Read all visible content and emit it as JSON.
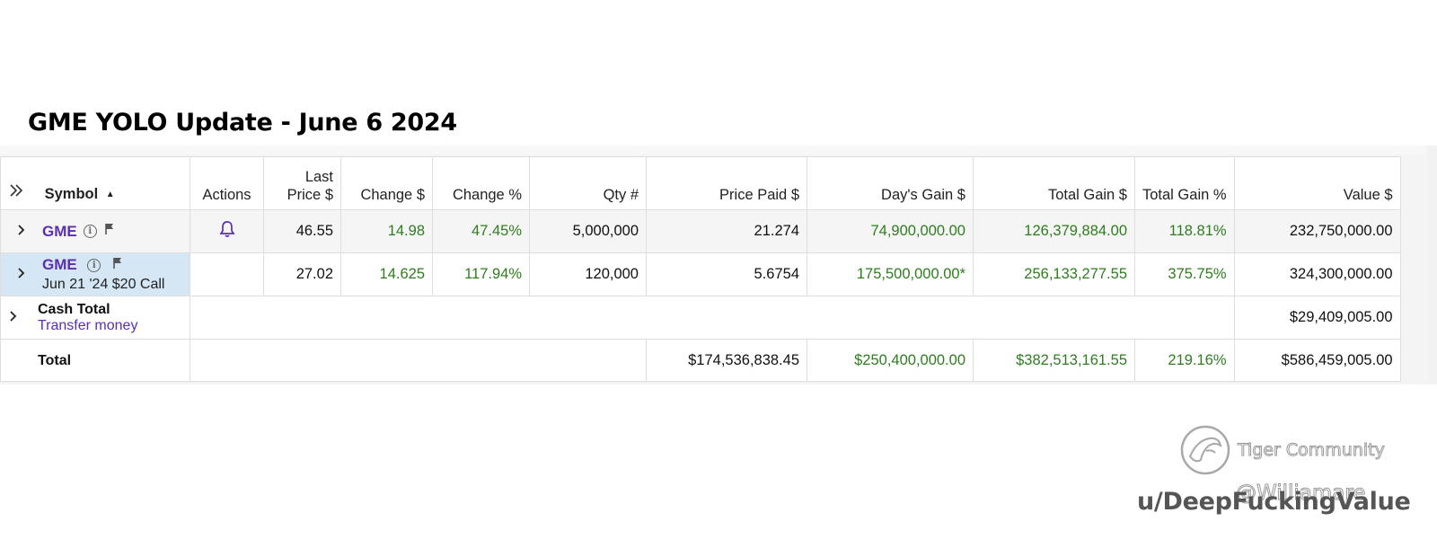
{
  "title": "GME YOLO Update - June 6 2024",
  "table": {
    "headers": {
      "symbol": "Symbol",
      "actions": "Actions",
      "last_price_line1": "Last",
      "last_price_line2": "Price $",
      "change": "Change $",
      "change_pct": "Change %",
      "qty": "Qty #",
      "price_paid": "Price Paid $",
      "days_gain": "Day's Gain $",
      "total_gain": "Total Gain $",
      "total_gain_pct": "Total Gain %",
      "value": "Value $"
    },
    "rows": [
      {
        "symbol": "GME",
        "last_price": "46.55",
        "change": "14.98",
        "change_pct": "47.45%",
        "qty": "5,000,000",
        "price_paid": "21.274",
        "days_gain": "74,900,000.00",
        "total_gain": "126,379,884.00",
        "total_gain_pct": "118.81%",
        "value": "232,750,000.00"
      },
      {
        "symbol": "GME",
        "description": "Jun 21 '24 $20 Call",
        "last_price": "27.02",
        "change": "14.625",
        "change_pct": "117.94%",
        "qty": "120,000",
        "price_paid": "5.6754",
        "days_gain": "175,500,000.00*",
        "total_gain": "256,133,277.55",
        "total_gain_pct": "375.75%",
        "value": "324,300,000.00"
      }
    ],
    "cash": {
      "label": "Cash Total",
      "link": "Transfer money",
      "value": "$29,409,005.00"
    },
    "total": {
      "label": "Total",
      "price_paid": "$174,536,838.45",
      "days_gain": "$250,400,000.00",
      "total_gain": "$382,513,161.55",
      "total_gain_pct": "219.16%",
      "value": "$586,459,005.00"
    }
  },
  "watermark": {
    "brand": "Tiger Community",
    "handle": "@Williamare",
    "user": "u/DeepFuckingValue"
  },
  "colors": {
    "gain_green": "#2e7d1e",
    "link_purple": "#5b2fb0",
    "selected_row": "#d5e6f5"
  },
  "icons": {
    "expand_all": "double-chevron-right-icon",
    "row_expand": "chevron-right-icon",
    "sort": "sort-up-triangle-icon",
    "info": "info-circle-icon",
    "flag": "flag-icon",
    "alert": "bell-icon"
  }
}
